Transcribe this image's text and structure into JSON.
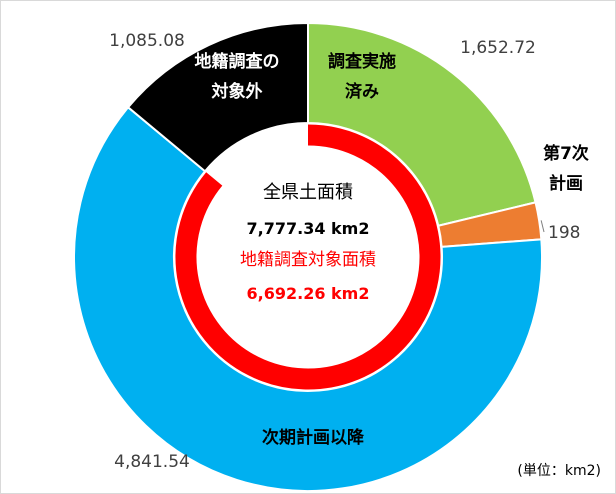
{
  "chart_data": {
    "type": "pie",
    "variant": "donut",
    "unit_label": "(単位：km2)",
    "categories": [
      "調査実施済み",
      "第7次計画",
      "次期計画以降",
      "地籍調査の対象外"
    ],
    "values": [
      1652.72,
      198,
      4841.54,
      1085.08
    ],
    "value_labels": [
      "1,652.72",
      "198",
      "4,841.54",
      "1,085.08"
    ],
    "colors": [
      "#92d050",
      "#ed7d31",
      "#00b0f0",
      "#000000"
    ],
    "segment_label_lines": [
      [
        "調査実施",
        "済み"
      ],
      [
        "第7次",
        "計画"
      ],
      [
        "次期計画以降"
      ],
      [
        "地籍調査の",
        "対象外"
      ]
    ],
    "segment_label_colors": [
      "#000000",
      "#000000",
      "#000000",
      "#ffffff"
    ],
    "inner_ring": {
      "color": "#ff0000",
      "fraction_of_total": 0.8605
    },
    "center": {
      "line1": "全県土面積",
      "line2": "7,777.34 km2",
      "line3": "地籍調査対象面積",
      "line4": "6,692.26 km2"
    }
  }
}
